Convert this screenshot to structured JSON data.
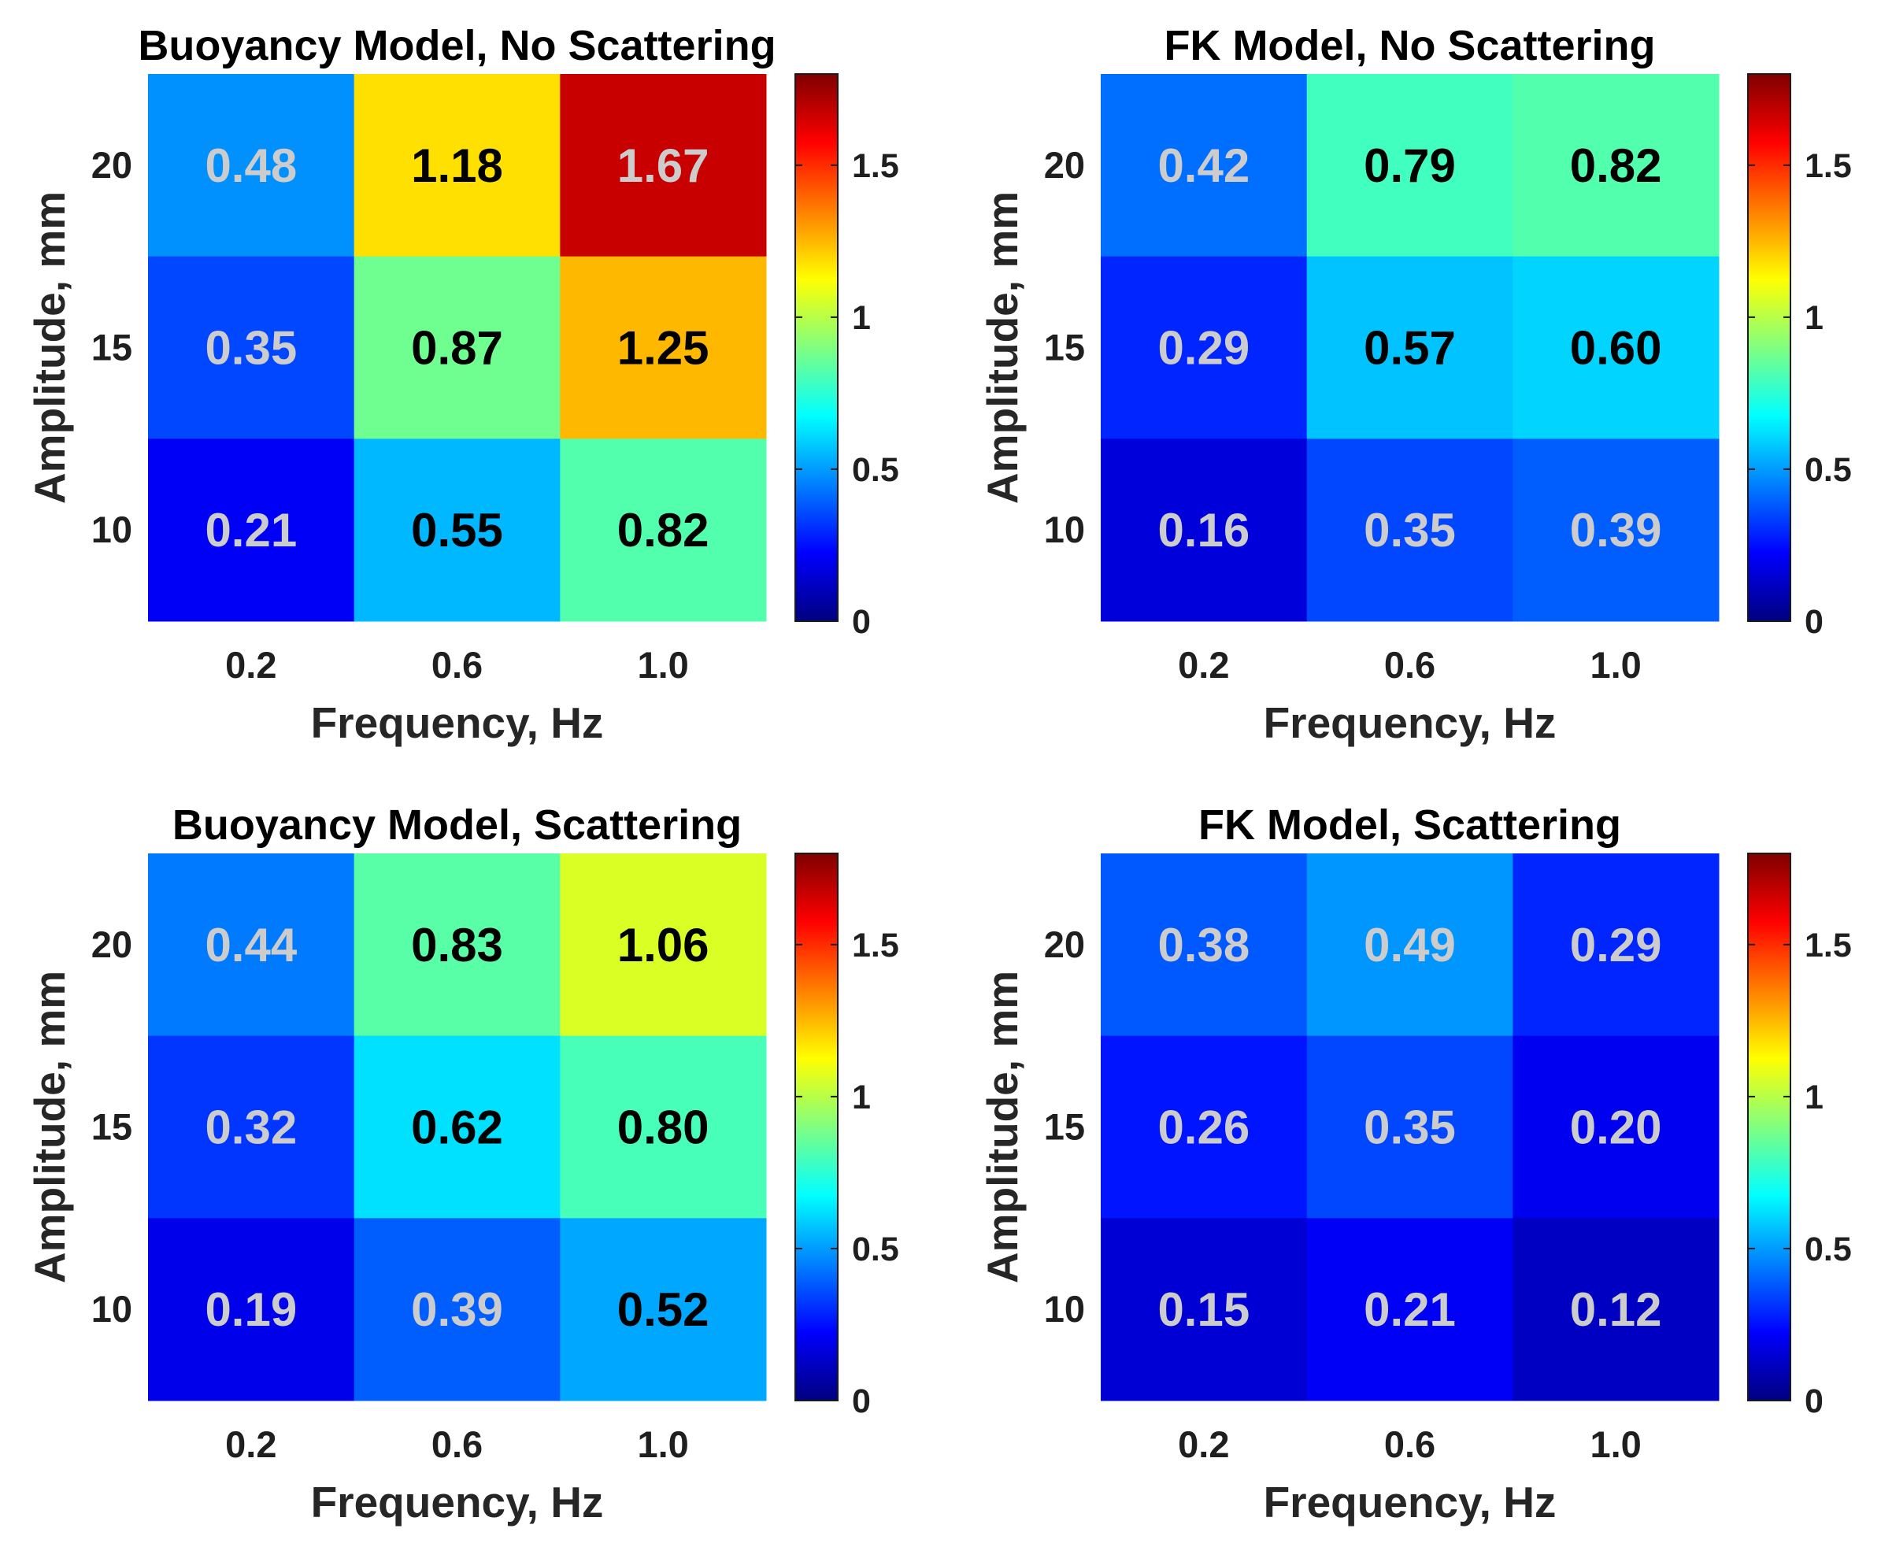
{
  "chart_data": [
    {
      "type": "heatmap",
      "title": "Buoyancy Model, No Scattering",
      "xlabel": "Frequency, Hz",
      "ylabel": "Amplitude, mm",
      "x_categories": [
        "0.2",
        "0.6",
        "1.0"
      ],
      "y_categories": [
        "20",
        "15",
        "10"
      ],
      "values": [
        [
          0.48,
          1.18,
          1.67
        ],
        [
          0.35,
          0.87,
          1.25
        ],
        [
          0.21,
          0.55,
          0.82
        ]
      ],
      "labels": [
        [
          "0.48",
          "1.18",
          "1.67"
        ],
        [
          "0.35",
          "0.87",
          "1.25"
        ],
        [
          "0.21",
          "0.55",
          "0.82"
        ]
      ],
      "colorbar": {
        "colormap": "jet",
        "range": [
          0,
          1.8
        ],
        "ticks": [
          "0",
          "0.5",
          "1",
          "1.5"
        ]
      }
    },
    {
      "type": "heatmap",
      "title": "FK Model, No Scattering",
      "xlabel": "Frequency, Hz",
      "ylabel": "Amplitude, mm",
      "x_categories": [
        "0.2",
        "0.6",
        "1.0"
      ],
      "y_categories": [
        "20",
        "15",
        "10"
      ],
      "values": [
        [
          0.42,
          0.79,
          0.82
        ],
        [
          0.29,
          0.57,
          0.6
        ],
        [
          0.16,
          0.35,
          0.39
        ]
      ],
      "labels": [
        [
          "0.42",
          "0.79",
          "0.82"
        ],
        [
          "0.29",
          "0.57",
          "0.60"
        ],
        [
          "0.16",
          "0.35",
          "0.39"
        ]
      ],
      "colorbar": {
        "colormap": "jet",
        "range": [
          0,
          1.8
        ],
        "ticks": [
          "0",
          "0.5",
          "1",
          "1.5"
        ]
      }
    },
    {
      "type": "heatmap",
      "title": "Buoyancy Model, Scattering",
      "xlabel": "Frequency, Hz",
      "ylabel": "Amplitude, mm",
      "x_categories": [
        "0.2",
        "0.6",
        "1.0"
      ],
      "y_categories": [
        "20",
        "15",
        "10"
      ],
      "values": [
        [
          0.44,
          0.83,
          1.06
        ],
        [
          0.32,
          0.62,
          0.8
        ],
        [
          0.19,
          0.39,
          0.52
        ]
      ],
      "labels": [
        [
          "0.44",
          "0.83",
          "1.06"
        ],
        [
          "0.32",
          "0.62",
          "0.80"
        ],
        [
          "0.19",
          "0.39",
          "0.52"
        ]
      ],
      "colorbar": {
        "colormap": "jet",
        "range": [
          0,
          1.8
        ],
        "ticks": [
          "0",
          "0.5",
          "1",
          "1.5"
        ]
      }
    },
    {
      "type": "heatmap",
      "title": "FK Model, Scattering",
      "xlabel": "Frequency, Hz",
      "ylabel": "Amplitude, mm",
      "x_categories": [
        "0.2",
        "0.6",
        "1.0"
      ],
      "y_categories": [
        "20",
        "15",
        "10"
      ],
      "values": [
        [
          0.38,
          0.49,
          0.29
        ],
        [
          0.26,
          0.35,
          0.2
        ],
        [
          0.15,
          0.21,
          0.12
        ]
      ],
      "labels": [
        [
          "0.38",
          "0.49",
          "0.29"
        ],
        [
          "0.26",
          "0.35",
          "0.20"
        ],
        [
          "0.15",
          "0.21",
          "0.12"
        ]
      ],
      "colorbar": {
        "colormap": "jet",
        "range": [
          0,
          1.8
        ],
        "ticks": [
          "0",
          "0.5",
          "1",
          "1.5"
        ]
      }
    }
  ]
}
